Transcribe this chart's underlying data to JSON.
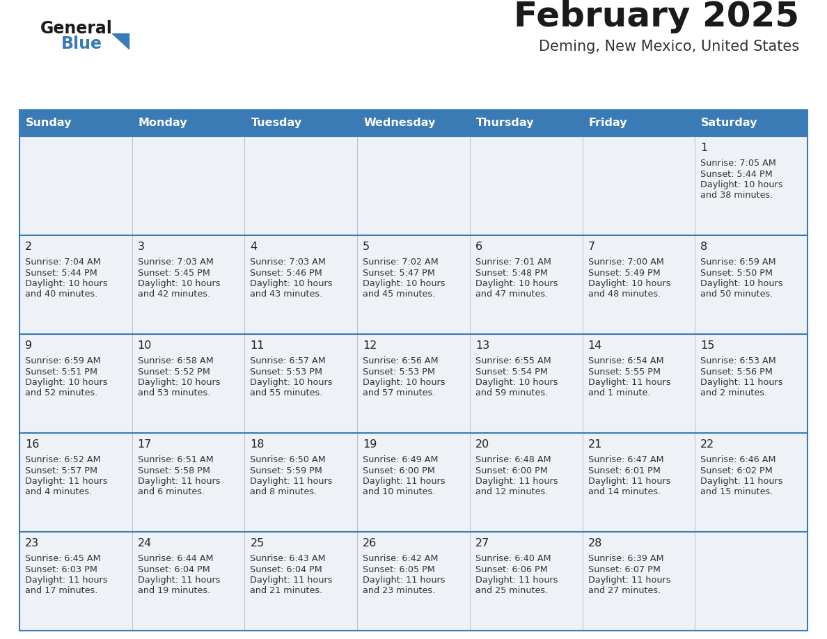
{
  "title": "February 2025",
  "subtitle": "Deming, New Mexico, United States",
  "header_color": "#3a7ab5",
  "header_text_color": "#ffffff",
  "cell_bg_color": "#eef1f5",
  "cell_bg_white": "#ffffff",
  "border_color": "#3a7ab5",
  "grid_line_color": "#3a7ab5",
  "title_color": "#1a1a1a",
  "subtitle_color": "#333333",
  "day_number_color": "#222222",
  "cell_text_color": "#333333",
  "days_of_week": [
    "Sunday",
    "Monday",
    "Tuesday",
    "Wednesday",
    "Thursday",
    "Friday",
    "Saturday"
  ],
  "weeks": [
    [
      null,
      null,
      null,
      null,
      null,
      null,
      {
        "day": 1,
        "sunrise": "7:05 AM",
        "sunset": "5:44 PM",
        "daylight": "10 hours and 38 minutes."
      }
    ],
    [
      {
        "day": 2,
        "sunrise": "7:04 AM",
        "sunset": "5:44 PM",
        "daylight": "10 hours and 40 minutes."
      },
      {
        "day": 3,
        "sunrise": "7:03 AM",
        "sunset": "5:45 PM",
        "daylight": "10 hours and 42 minutes."
      },
      {
        "day": 4,
        "sunrise": "7:03 AM",
        "sunset": "5:46 PM",
        "daylight": "10 hours and 43 minutes."
      },
      {
        "day": 5,
        "sunrise": "7:02 AM",
        "sunset": "5:47 PM",
        "daylight": "10 hours and 45 minutes."
      },
      {
        "day": 6,
        "sunrise": "7:01 AM",
        "sunset": "5:48 PM",
        "daylight": "10 hours and 47 minutes."
      },
      {
        "day": 7,
        "sunrise": "7:00 AM",
        "sunset": "5:49 PM",
        "daylight": "10 hours and 48 minutes."
      },
      {
        "day": 8,
        "sunrise": "6:59 AM",
        "sunset": "5:50 PM",
        "daylight": "10 hours and 50 minutes."
      }
    ],
    [
      {
        "day": 9,
        "sunrise": "6:59 AM",
        "sunset": "5:51 PM",
        "daylight": "10 hours and 52 minutes."
      },
      {
        "day": 10,
        "sunrise": "6:58 AM",
        "sunset": "5:52 PM",
        "daylight": "10 hours and 53 minutes."
      },
      {
        "day": 11,
        "sunrise": "6:57 AM",
        "sunset": "5:53 PM",
        "daylight": "10 hours and 55 minutes."
      },
      {
        "day": 12,
        "sunrise": "6:56 AM",
        "sunset": "5:53 PM",
        "daylight": "10 hours and 57 minutes."
      },
      {
        "day": 13,
        "sunrise": "6:55 AM",
        "sunset": "5:54 PM",
        "daylight": "10 hours and 59 minutes."
      },
      {
        "day": 14,
        "sunrise": "6:54 AM",
        "sunset": "5:55 PM",
        "daylight": "11 hours and 1 minute."
      },
      {
        "day": 15,
        "sunrise": "6:53 AM",
        "sunset": "5:56 PM",
        "daylight": "11 hours and 2 minutes."
      }
    ],
    [
      {
        "day": 16,
        "sunrise": "6:52 AM",
        "sunset": "5:57 PM",
        "daylight": "11 hours and 4 minutes."
      },
      {
        "day": 17,
        "sunrise": "6:51 AM",
        "sunset": "5:58 PM",
        "daylight": "11 hours and 6 minutes."
      },
      {
        "day": 18,
        "sunrise": "6:50 AM",
        "sunset": "5:59 PM",
        "daylight": "11 hours and 8 minutes."
      },
      {
        "day": 19,
        "sunrise": "6:49 AM",
        "sunset": "6:00 PM",
        "daylight": "11 hours and 10 minutes."
      },
      {
        "day": 20,
        "sunrise": "6:48 AM",
        "sunset": "6:00 PM",
        "daylight": "11 hours and 12 minutes."
      },
      {
        "day": 21,
        "sunrise": "6:47 AM",
        "sunset": "6:01 PM",
        "daylight": "11 hours and 14 minutes."
      },
      {
        "day": 22,
        "sunrise": "6:46 AM",
        "sunset": "6:02 PM",
        "daylight": "11 hours and 15 minutes."
      }
    ],
    [
      {
        "day": 23,
        "sunrise": "6:45 AM",
        "sunset": "6:03 PM",
        "daylight": "11 hours and 17 minutes."
      },
      {
        "day": 24,
        "sunrise": "6:44 AM",
        "sunset": "6:04 PM",
        "daylight": "11 hours and 19 minutes."
      },
      {
        "day": 25,
        "sunrise": "6:43 AM",
        "sunset": "6:04 PM",
        "daylight": "11 hours and 21 minutes."
      },
      {
        "day": 26,
        "sunrise": "6:42 AM",
        "sunset": "6:05 PM",
        "daylight": "11 hours and 23 minutes."
      },
      {
        "day": 27,
        "sunrise": "6:40 AM",
        "sunset": "6:06 PM",
        "daylight": "11 hours and 25 minutes."
      },
      {
        "day": 28,
        "sunrise": "6:39 AM",
        "sunset": "6:07 PM",
        "daylight": "11 hours and 27 minutes."
      },
      null
    ]
  ],
  "logo_general_color": "#1a1a1a",
  "logo_blue_color": "#3a7ab5",
  "figsize": [
    11.88,
    9.18
  ],
  "dpi": 100
}
